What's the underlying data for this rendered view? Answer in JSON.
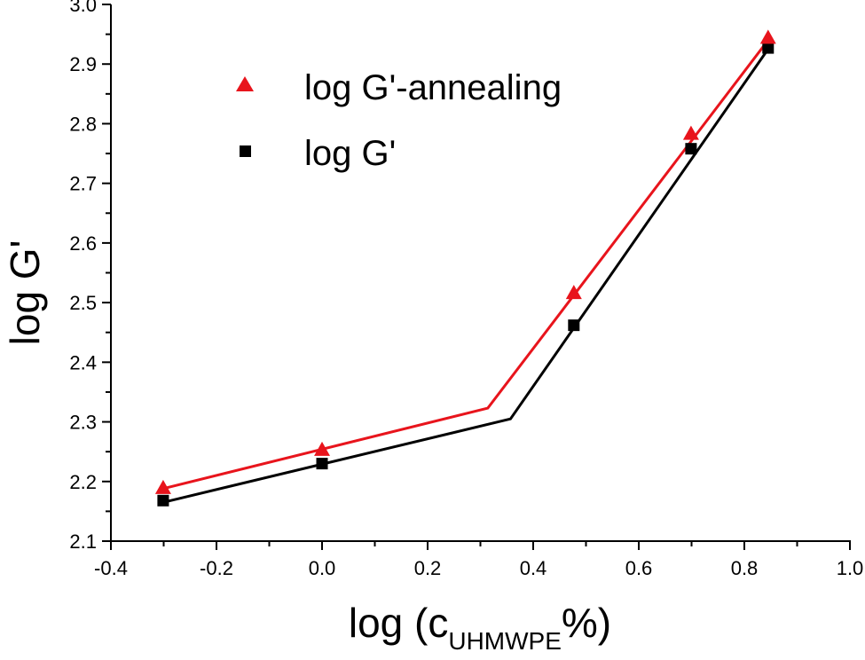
{
  "chart_data": {
    "type": "scatter",
    "title": "",
    "xlabel": "log (c",
    "xlabel_sub": "UHMWPE",
    "xlabel_suffix": "%)",
    "ylabel": "log G'",
    "xlim": [
      -0.4,
      1.0
    ],
    "ylim": [
      2.1,
      3.0
    ],
    "x_ticks": [
      -0.4,
      -0.2,
      0.0,
      0.2,
      0.4,
      0.6,
      0.8,
      1.0
    ],
    "x_tick_labels": [
      "-0.4",
      "-0.2",
      "0.0",
      "0.2",
      "0.4",
      "0.6",
      "0.8",
      "1.0"
    ],
    "y_ticks": [
      2.1,
      2.2,
      2.3,
      2.4,
      2.5,
      2.6,
      2.7,
      2.8,
      2.9,
      3.0
    ],
    "y_tick_labels": [
      "2.1",
      "2.2",
      "2.3",
      "2.4",
      "2.5",
      "2.6",
      "2.7",
      "2.8",
      "2.9",
      "3.0"
    ],
    "grid": false,
    "legend_position": "top-left",
    "series": [
      {
        "name": "log G'-annealing",
        "marker": "triangle",
        "color": "#e8141c",
        "x": [
          -0.301,
          0.0,
          0.477,
          0.699,
          0.845
        ],
        "y": [
          2.188,
          2.252,
          2.515,
          2.782,
          2.943
        ],
        "fit_line": {
          "x": [
            -0.301,
            0.314,
            0.845
          ],
          "y": [
            2.188,
            2.323,
            2.94
          ]
        }
      },
      {
        "name": "log G'",
        "marker": "square",
        "color": "#000000",
        "x": [
          -0.301,
          0.0,
          0.477,
          0.699,
          0.845
        ],
        "y": [
          2.168,
          2.23,
          2.462,
          2.758,
          2.927
        ],
        "fit_line": {
          "x": [
            -0.301,
            0.357,
            0.845
          ],
          "y": [
            2.165,
            2.305,
            2.925
          ]
        }
      }
    ]
  }
}
